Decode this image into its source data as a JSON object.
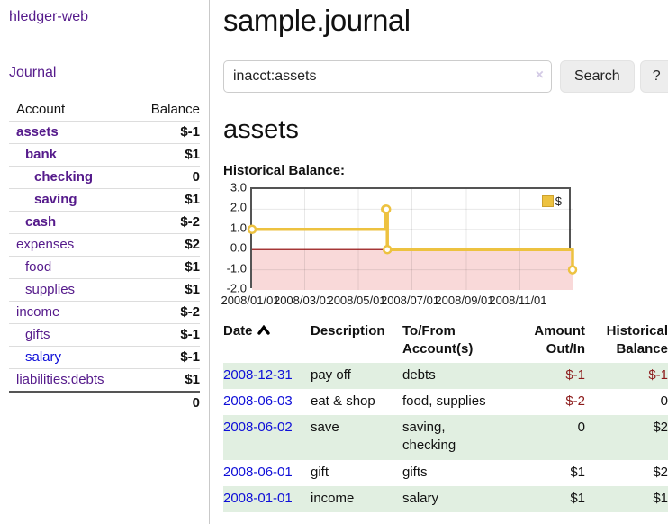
{
  "sidebar": {
    "app_title": "hledger-web",
    "journal_link": "Journal",
    "accounts_table": {
      "headers": {
        "account": "Account",
        "balance": "Balance"
      },
      "rows": [
        {
          "name": "assets",
          "depth": 1,
          "bold": true,
          "balance": "$-1",
          "balance_style": "neg"
        },
        {
          "name": "bank",
          "depth": 2,
          "bold": true,
          "balance": "$1",
          "balance_style": "pos"
        },
        {
          "name": "checking",
          "depth": 3,
          "bold": true,
          "balance": "0",
          "balance_style": "pos"
        },
        {
          "name": "saving",
          "depth": 3,
          "bold": true,
          "balance": "$1",
          "balance_style": "pos"
        },
        {
          "name": "cash",
          "depth": 2,
          "bold": true,
          "balance": "$-2",
          "balance_style": "neg"
        },
        {
          "name": "expenses",
          "depth": 1,
          "bold": false,
          "balance": "$2",
          "balance_style": "pos"
        },
        {
          "name": "food",
          "depth": 2,
          "bold": false,
          "balance": "$1",
          "balance_style": "pos"
        },
        {
          "name": "supplies",
          "depth": 2,
          "bold": false,
          "balance": "$1",
          "balance_style": "pos"
        },
        {
          "name": "income",
          "depth": 1,
          "bold": false,
          "balance": "$-2",
          "balance_style": "neg-dim"
        },
        {
          "name": "gifts",
          "depth": 2,
          "bold": false,
          "balance": "$-1",
          "balance_style": "neg-dim"
        },
        {
          "name": "salary",
          "depth": 2,
          "bold": false,
          "balance": "$-1",
          "balance_style": "neg-dim",
          "link_color": "blue"
        },
        {
          "name": "liabilities:debts",
          "depth": 1,
          "bold": false,
          "balance": "$1",
          "balance_style": "pos"
        }
      ],
      "total": "0"
    }
  },
  "main": {
    "title": "sample.journal",
    "search": {
      "value": "inacct:assets",
      "clear_icon": "×",
      "search_button": "Search",
      "help_button": "?"
    },
    "account_heading": "assets",
    "chart_heading": "Historical Balance:",
    "register_table": {
      "headers": {
        "date": "Date",
        "description": "Description",
        "accounts": "To/From Account(s)",
        "amount": "Amount Out/In",
        "balance": "Historical Balance"
      },
      "rows": [
        {
          "date": "2008-12-31",
          "description": "pay off",
          "accounts": "debts",
          "amount": "$-1",
          "amount_negative": true,
          "balance": "$-1",
          "balance_negative": true
        },
        {
          "date": "2008-06-03",
          "description": "eat & shop",
          "accounts": "food, supplies",
          "amount": "$-2",
          "amount_negative": true,
          "balance": "0",
          "balance_negative": false
        },
        {
          "date": "2008-06-02",
          "description": "save",
          "accounts": "saving, checking",
          "amount": "0",
          "amount_negative": false,
          "balance": "$2",
          "balance_negative": false
        },
        {
          "date": "2008-06-01",
          "description": "gift",
          "accounts": "gifts",
          "amount": "$1",
          "amount_negative": false,
          "balance": "$2",
          "balance_negative": false
        },
        {
          "date": "2008-01-01",
          "description": "income",
          "accounts": "salary",
          "amount": "$1",
          "amount_negative": false,
          "balance": "$1",
          "balance_negative": false
        }
      ]
    }
  },
  "chart_data": {
    "type": "line",
    "title": "Historical Balance:",
    "step": true,
    "series": [
      {
        "name": "$",
        "color": "#edc240",
        "points": [
          [
            "2008-01-01",
            1
          ],
          [
            "2008-06-01",
            2
          ],
          [
            "2008-06-02",
            2
          ],
          [
            "2008-06-03",
            0
          ],
          [
            "2008-12-31",
            -1
          ]
        ]
      }
    ],
    "ylim": [
      -2,
      3
    ],
    "yticks": [
      3.0,
      2.0,
      1.0,
      0.0,
      -1.0,
      -2.0
    ],
    "xlim": [
      "2008-01-01",
      "2008-12-31"
    ],
    "xtick_dates": [
      "2008-01-01",
      "2008-03-01",
      "2008-05-01",
      "2008-07-01",
      "2008-09-01",
      "2008-11-01"
    ],
    "xtick_labels": [
      "2008/01/01",
      "2008/03/01",
      "2008/05/01",
      "2008/07/01",
      "2008/09/01",
      "2008/11/01"
    ],
    "legend": {
      "label": "$",
      "position": "top-right"
    },
    "grid": true,
    "negative_region_color": "#f9d9d9",
    "zero_line_color": "#8b0000"
  },
  "colors": {
    "link_purple": "#551a8b",
    "link_blue": "#0f0fd8",
    "negative_bold": "#8f1414",
    "negative_dim": "#c08181",
    "row_green": "#e1efe1",
    "series_gold": "#edc240"
  }
}
